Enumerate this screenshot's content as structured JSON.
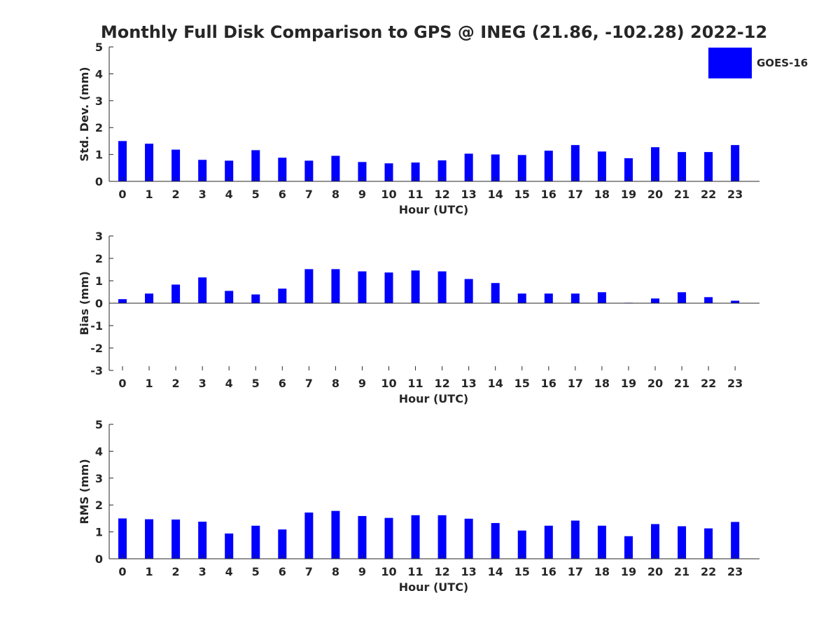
{
  "title": "Monthly Full Disk Comparison to GPS @ INEG (21.86, -102.28) 2022-12",
  "chart_data": [
    {
      "type": "bar",
      "title": "Monthly Full Disk Comparison to GPS @ INEG (21.86, -102.28) 2022-12",
      "xlabel": "Hour (UTC)",
      "ylabel": "Std. Dev. (mm)",
      "ylim": [
        0,
        5
      ],
      "yticks": [
        "0",
        "1",
        "2",
        "3",
        "4",
        "5"
      ],
      "categories": [
        "0",
        "1",
        "2",
        "3",
        "4",
        "5",
        "6",
        "7",
        "8",
        "9",
        "10",
        "11",
        "12",
        "13",
        "14",
        "15",
        "16",
        "17",
        "18",
        "19",
        "20",
        "21",
        "22",
        "23"
      ],
      "series": [
        {
          "name": "GOES-16",
          "color": "#0000ff",
          "values": [
            1.5,
            1.4,
            1.18,
            0.8,
            0.77,
            1.16,
            0.88,
            0.77,
            0.95,
            0.72,
            0.67,
            0.7,
            0.78,
            1.03,
            1.0,
            0.98,
            1.14,
            1.35,
            1.11,
            0.86,
            1.27,
            1.09,
            1.09,
            1.35
          ]
        }
      ],
      "legend": {
        "entries": [
          "GOES-16"
        ],
        "position": "top-right"
      }
    },
    {
      "type": "bar",
      "xlabel": "Hour (UTC)",
      "ylabel": "Bias (mm)",
      "ylim": [
        -3,
        3
      ],
      "yticks": [
        "-3",
        "-2",
        "-1",
        "0",
        "1",
        "2",
        "3"
      ],
      "categories": [
        "0",
        "1",
        "2",
        "3",
        "4",
        "5",
        "6",
        "7",
        "8",
        "9",
        "10",
        "11",
        "12",
        "13",
        "14",
        "15",
        "16",
        "17",
        "18",
        "19",
        "20",
        "21",
        "22",
        "23"
      ],
      "series": [
        {
          "name": "GOES-16",
          "color": "#0000ff",
          "values": [
            0.18,
            0.43,
            0.83,
            1.15,
            0.55,
            0.39,
            0.65,
            1.52,
            1.52,
            1.42,
            1.37,
            1.46,
            1.42,
            1.08,
            0.9,
            0.43,
            0.43,
            0.43,
            0.49,
            0.02,
            0.21,
            0.49,
            0.27,
            0.11
          ]
        }
      ]
    },
    {
      "type": "bar",
      "xlabel": "Hour (UTC)",
      "ylabel": "RMS (mm)",
      "ylim": [
        0,
        5
      ],
      "yticks": [
        "0",
        "1",
        "2",
        "3",
        "4",
        "5"
      ],
      "categories": [
        "0",
        "1",
        "2",
        "3",
        "4",
        "5",
        "6",
        "7",
        "8",
        "9",
        "10",
        "11",
        "12",
        "13",
        "14",
        "15",
        "16",
        "17",
        "18",
        "19",
        "20",
        "21",
        "22",
        "23"
      ],
      "series": [
        {
          "name": "GOES-16",
          "color": "#0000ff",
          "values": [
            1.5,
            1.47,
            1.46,
            1.38,
            0.94,
            1.23,
            1.09,
            1.72,
            1.78,
            1.59,
            1.52,
            1.62,
            1.62,
            1.49,
            1.33,
            1.05,
            1.23,
            1.42,
            1.23,
            0.84,
            1.29,
            1.21,
            1.13,
            1.37
          ]
        }
      ]
    }
  ]
}
